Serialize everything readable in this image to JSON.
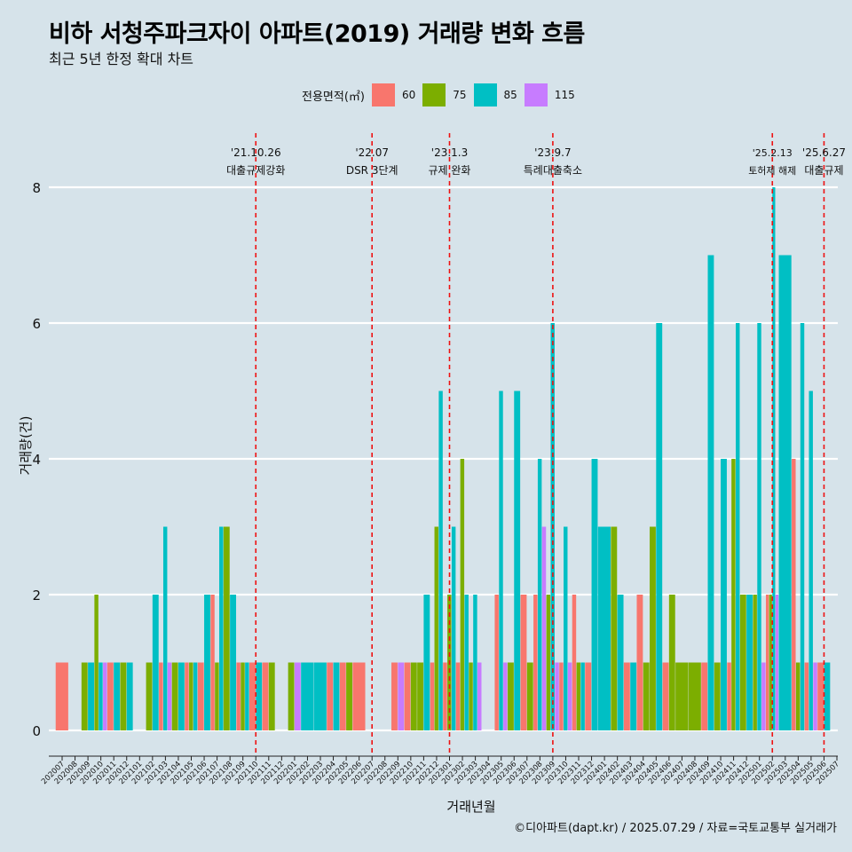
{
  "chart_data": {
    "type": "bar",
    "title": "비하 서청주파크자이 아파트(2019) 거래량 변화 흐름",
    "subtitle": "최근 5년 한정 확대 차트",
    "xlabel": "거래년월",
    "ylabel": "거래량(건)",
    "ylim": [
      0,
      8
    ],
    "yticks": [
      0,
      2,
      4,
      6,
      8
    ],
    "legend": {
      "title": "전용면적(㎡)",
      "placement": "top",
      "entries": [
        {
          "label": "60",
          "color": "#f8766d"
        },
        {
          "label": "75",
          "color": "#7cae00"
        },
        {
          "label": "85",
          "color": "#00bfc4"
        },
        {
          "label": "115",
          "color": "#c77cff"
        }
      ]
    },
    "months": [
      "202007",
      "202008",
      "202009",
      "202010",
      "202011",
      "202012",
      "202101",
      "202102",
      "202103",
      "202104",
      "202105",
      "202106",
      "202107",
      "202108",
      "202109",
      "202110",
      "202111",
      "202112",
      "202201",
      "202202",
      "202203",
      "202204",
      "202205",
      "202206",
      "202207",
      "202208",
      "202209",
      "202210",
      "202211",
      "202212",
      "202301",
      "202302",
      "202303",
      "202304",
      "202305",
      "202306",
      "202307",
      "202308",
      "202309",
      "202310",
      "202311",
      "202312",
      "202401",
      "202402",
      "202403",
      "202404",
      "202405",
      "202406",
      "202407",
      "202408",
      "202409",
      "202410",
      "202411",
      "202412",
      "202501",
      "202502",
      "202503",
      "202504",
      "202505",
      "202506",
      "202507"
    ],
    "bars": [
      [
        [
          1,
          0,
          0,
          0
        ]
      ],
      [
        [
          0,
          0,
          0,
          0
        ]
      ],
      [
        [
          0,
          1,
          1,
          0
        ]
      ],
      [
        [
          0,
          2,
          1,
          1
        ]
      ],
      [
        [
          1,
          0,
          1,
          0
        ]
      ],
      [
        [
          0,
          1,
          1,
          0
        ]
      ],
      [
        [
          0,
          0,
          0,
          0
        ]
      ],
      [
        [
          0,
          1,
          2,
          0
        ]
      ],
      [
        [
          1,
          0,
          3,
          1
        ]
      ],
      [
        [
          0,
          1,
          1,
          0
        ]
      ],
      [
        [
          1,
          1,
          1,
          0
        ]
      ],
      [
        [
          1,
          0,
          2,
          0
        ]
      ],
      [
        [
          2,
          1,
          3,
          0
        ]
      ],
      [
        [
          0,
          3,
          2,
          0
        ]
      ],
      [
        [
          1,
          1,
          1,
          0
        ]
      ],
      [
        [
          1,
          0,
          1,
          0
        ]
      ],
      [
        [
          1,
          1,
          0,
          0
        ]
      ],
      [
        [
          0,
          0,
          0,
          0
        ]
      ],
      [
        [
          0,
          1,
          0,
          1
        ]
      ],
      [
        [
          0,
          0,
          1,
          0
        ]
      ],
      [
        [
          0,
          0,
          1,
          0
        ]
      ],
      [
        [
          1,
          0,
          1,
          0
        ]
      ],
      [
        [
          1,
          1,
          0,
          0
        ]
      ],
      [
        [
          1,
          0,
          0,
          0
        ]
      ],
      [
        [
          0,
          0,
          0,
          0
        ]
      ],
      [
        [
          0,
          0,
          0,
          0
        ]
      ],
      [
        [
          1,
          0,
          0,
          1
        ]
      ],
      [
        [
          1,
          1,
          0,
          0
        ]
      ],
      [
        [
          0,
          1,
          2,
          0
        ]
      ],
      [
        [
          1,
          3,
          5,
          0
        ]
      ],
      [
        [
          1,
          2,
          3,
          0
        ]
      ],
      [
        [
          1,
          4,
          2,
          0
        ]
      ],
      [
        [
          0,
          1,
          2,
          1
        ]
      ],
      [
        [
          0,
          0,
          0,
          0
        ]
      ],
      [
        [
          2,
          0,
          5,
          1
        ]
      ],
      [
        [
          0,
          1,
          5,
          0
        ]
      ],
      [
        [
          2,
          1,
          0,
          0
        ]
      ],
      [
        [
          2,
          0,
          4,
          3
        ]
      ],
      [
        [
          0,
          2,
          6,
          1
        ]
      ],
      [
        [
          1,
          0,
          3,
          1
        ]
      ],
      [
        [
          2,
          1,
          1,
          0
        ]
      ],
      [
        [
          1,
          0,
          4,
          0
        ]
      ],
      [
        [
          0,
          0,
          3,
          0
        ]
      ],
      [
        [
          0,
          3,
          2,
          0
        ]
      ],
      [
        [
          1,
          0,
          1,
          0
        ]
      ],
      [
        [
          2,
          1,
          0,
          0
        ]
      ],
      [
        [
          0,
          3,
          6,
          0
        ]
      ],
      [
        [
          1,
          2,
          0,
          0
        ]
      ],
      [
        [
          0,
          1,
          0,
          0
        ]
      ],
      [
        [
          0,
          1,
          0,
          0
        ]
      ],
      [
        [
          1,
          0,
          7,
          0
        ]
      ],
      [
        [
          0,
          1,
          4,
          0
        ]
      ],
      [
        [
          1,
          4,
          6,
          0
        ]
      ],
      [
        [
          0,
          2,
          2,
          0
        ]
      ],
      [
        [
          0,
          2,
          6,
          1
        ]
      ],
      [
        [
          2,
          2,
          8,
          2
        ]
      ],
      [
        [
          0,
          0,
          7,
          0
        ]
      ],
      [
        [
          4,
          1,
          6,
          0
        ]
      ],
      [
        [
          1,
          0,
          5,
          1
        ]
      ],
      [
        [
          1,
          0,
          1,
          0
        ]
      ],
      [
        [
          0,
          0,
          0,
          0
        ]
      ]
    ],
    "annotations": [
      {
        "month": "202110",
        "date": "'21.10.26",
        "label": "대출규제강화"
      },
      {
        "month": "202207",
        "date": "'22.07",
        "label": "DSR 3단계"
      },
      {
        "month": "202301",
        "date": "'23.1.3",
        "label": "규제 완화"
      },
      {
        "month": "202309",
        "date": "'23.9.7",
        "label": "특례대출축소"
      },
      {
        "month": "202502",
        "date": "'25.2.13",
        "label": "토허제 해제"
      },
      {
        "month": "202506",
        "date": "'25.6.27",
        "label": "대출규제"
      }
    ],
    "caption": "©디아파트(dapt.kr) / 2025.07.29 / 자료=국토교통부 실거래가"
  }
}
